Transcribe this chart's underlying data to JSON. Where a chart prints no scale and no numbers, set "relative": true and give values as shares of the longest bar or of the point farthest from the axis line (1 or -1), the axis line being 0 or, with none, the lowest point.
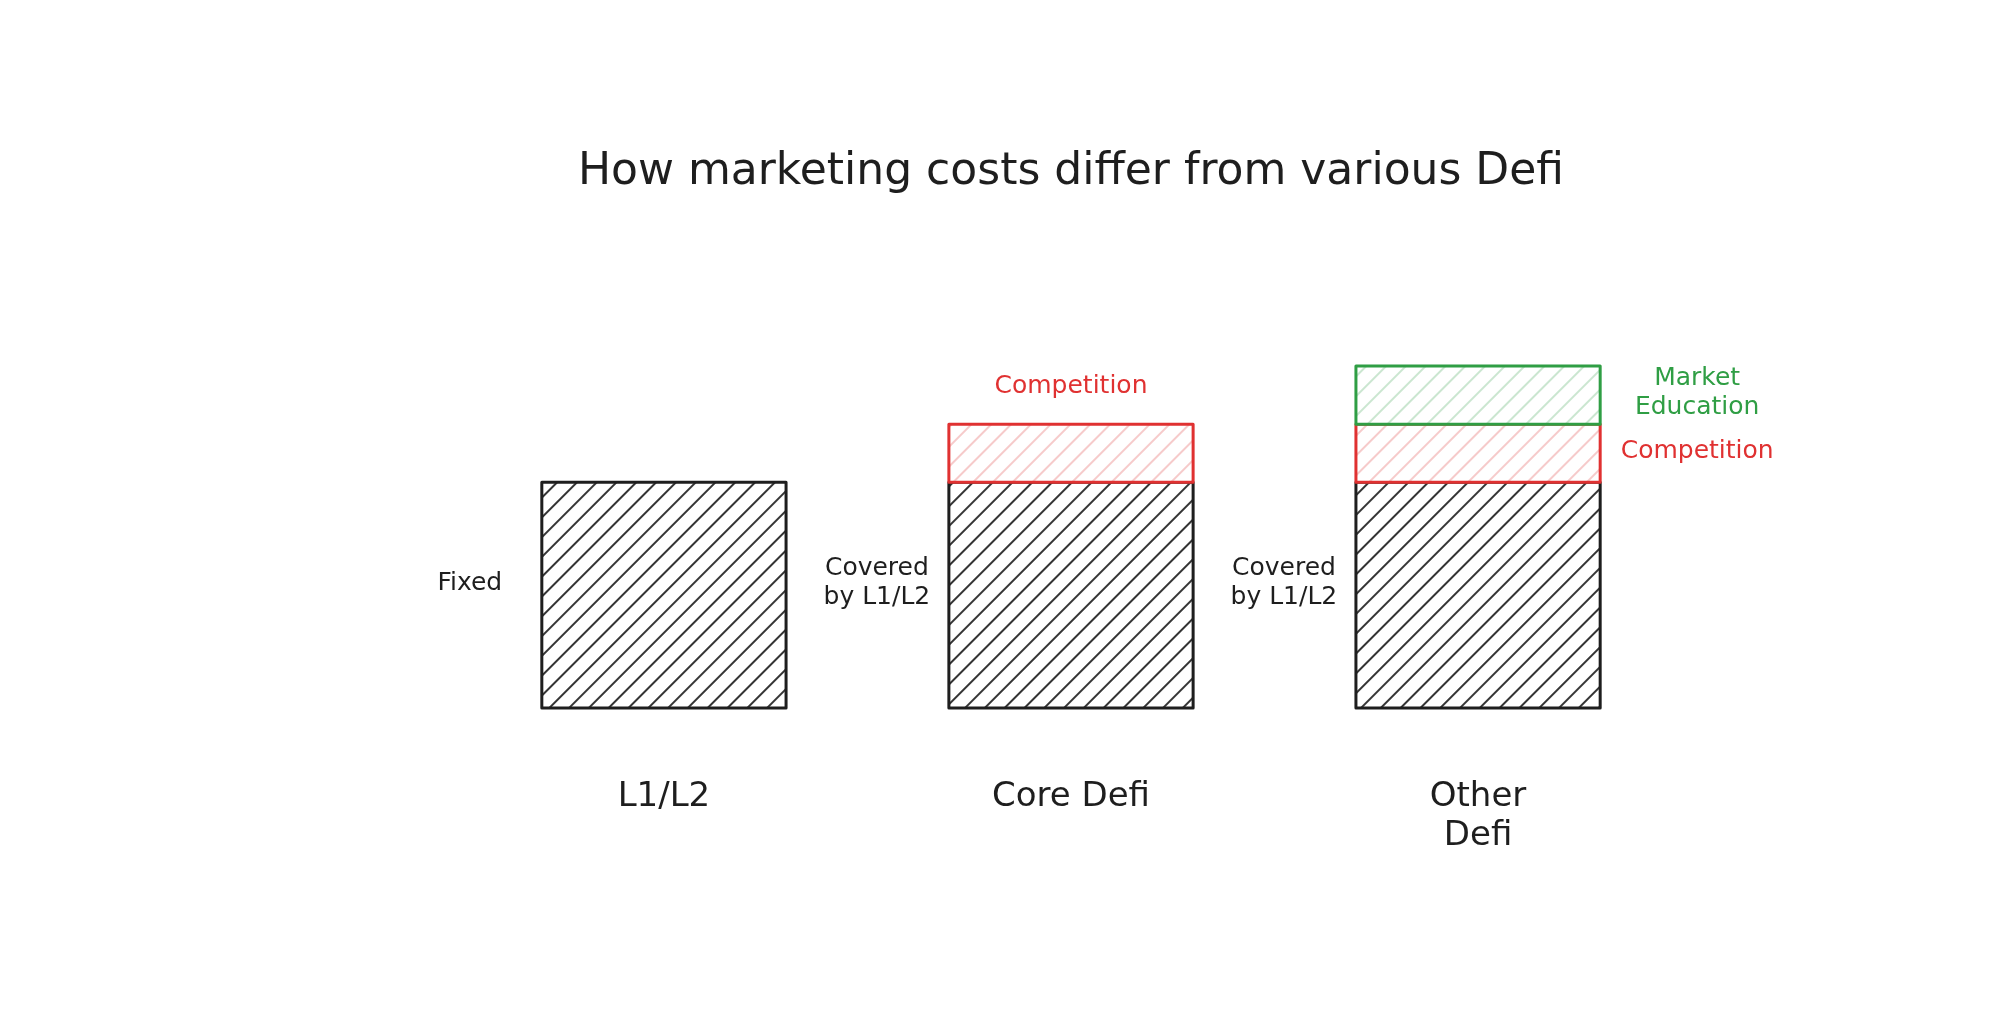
{
  "chart_data": {
    "type": "bar",
    "title": "How marketing costs differ from various Defi",
    "categories": [
      "L1/L2",
      "Core Defi",
      "Other Defi"
    ],
    "stacked": true,
    "relative": true,
    "series": [
      {
        "color": "#1e1e1e",
        "values": [
          0.66,
          0.66,
          0.66
        ]
      },
      {
        "color": "#e03131",
        "values": [
          null,
          0.17,
          0.17
        ]
      },
      {
        "color": "#2f9e44",
        "values": [
          null,
          null,
          0.17
        ]
      }
    ],
    "annotations": [
      "Fixed",
      "Covered by L1/L2",
      "Competition",
      "Covered by L1/L2",
      "Market Education",
      "Competition"
    ]
  }
}
